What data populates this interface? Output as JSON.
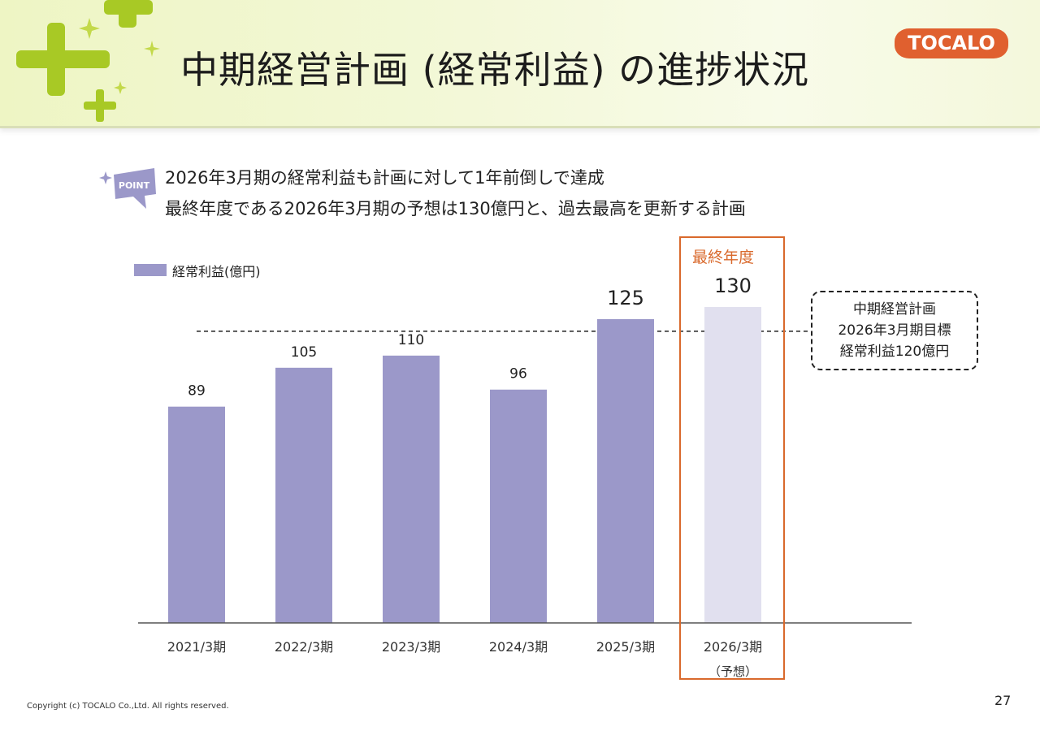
{
  "header": {
    "title": "中期経営計画 (経常利益) の進捗状況",
    "logo_text": "TOCALO"
  },
  "point": {
    "badge_text": "POINT",
    "lines": [
      "2026年3月期の経常利益も計画に対して1年前倒しで達成",
      "最終年度である2026年3月期の予想は130億円と、過去最高を更新する計画"
    ]
  },
  "final_year_label": "最終年度",
  "target_box": {
    "lines": [
      "中期経営計画",
      "2026年3月期目標",
      "経常利益120億円"
    ]
  },
  "chart_data": {
    "type": "bar",
    "categories": [
      "2021/3期",
      "2022/3期",
      "2023/3期",
      "2024/3期",
      "2025/3期",
      "2026/3期"
    ],
    "category_sublabels": [
      "",
      "",
      "",
      "",
      "",
      "（予想）"
    ],
    "series": [
      {
        "name": "経常利益(億円)",
        "values": [
          89,
          105,
          110,
          96,
          125,
          130
        ]
      }
    ],
    "forecast_index": 5,
    "target_line": 120,
    "ylim": [
      0,
      130
    ],
    "title": "",
    "xlabel": "",
    "ylabel": "",
    "grid": false,
    "legend_placement": "top-left",
    "colors": {
      "actual": "#9b98c9",
      "forecast": "#e1e0ef",
      "highlight": "#d9692c",
      "axis": "#555555"
    }
  },
  "footer": {
    "copyright": "Copyright (c) TOCALO Co.,Ltd. All rights reserved.",
    "page_number": "27"
  }
}
